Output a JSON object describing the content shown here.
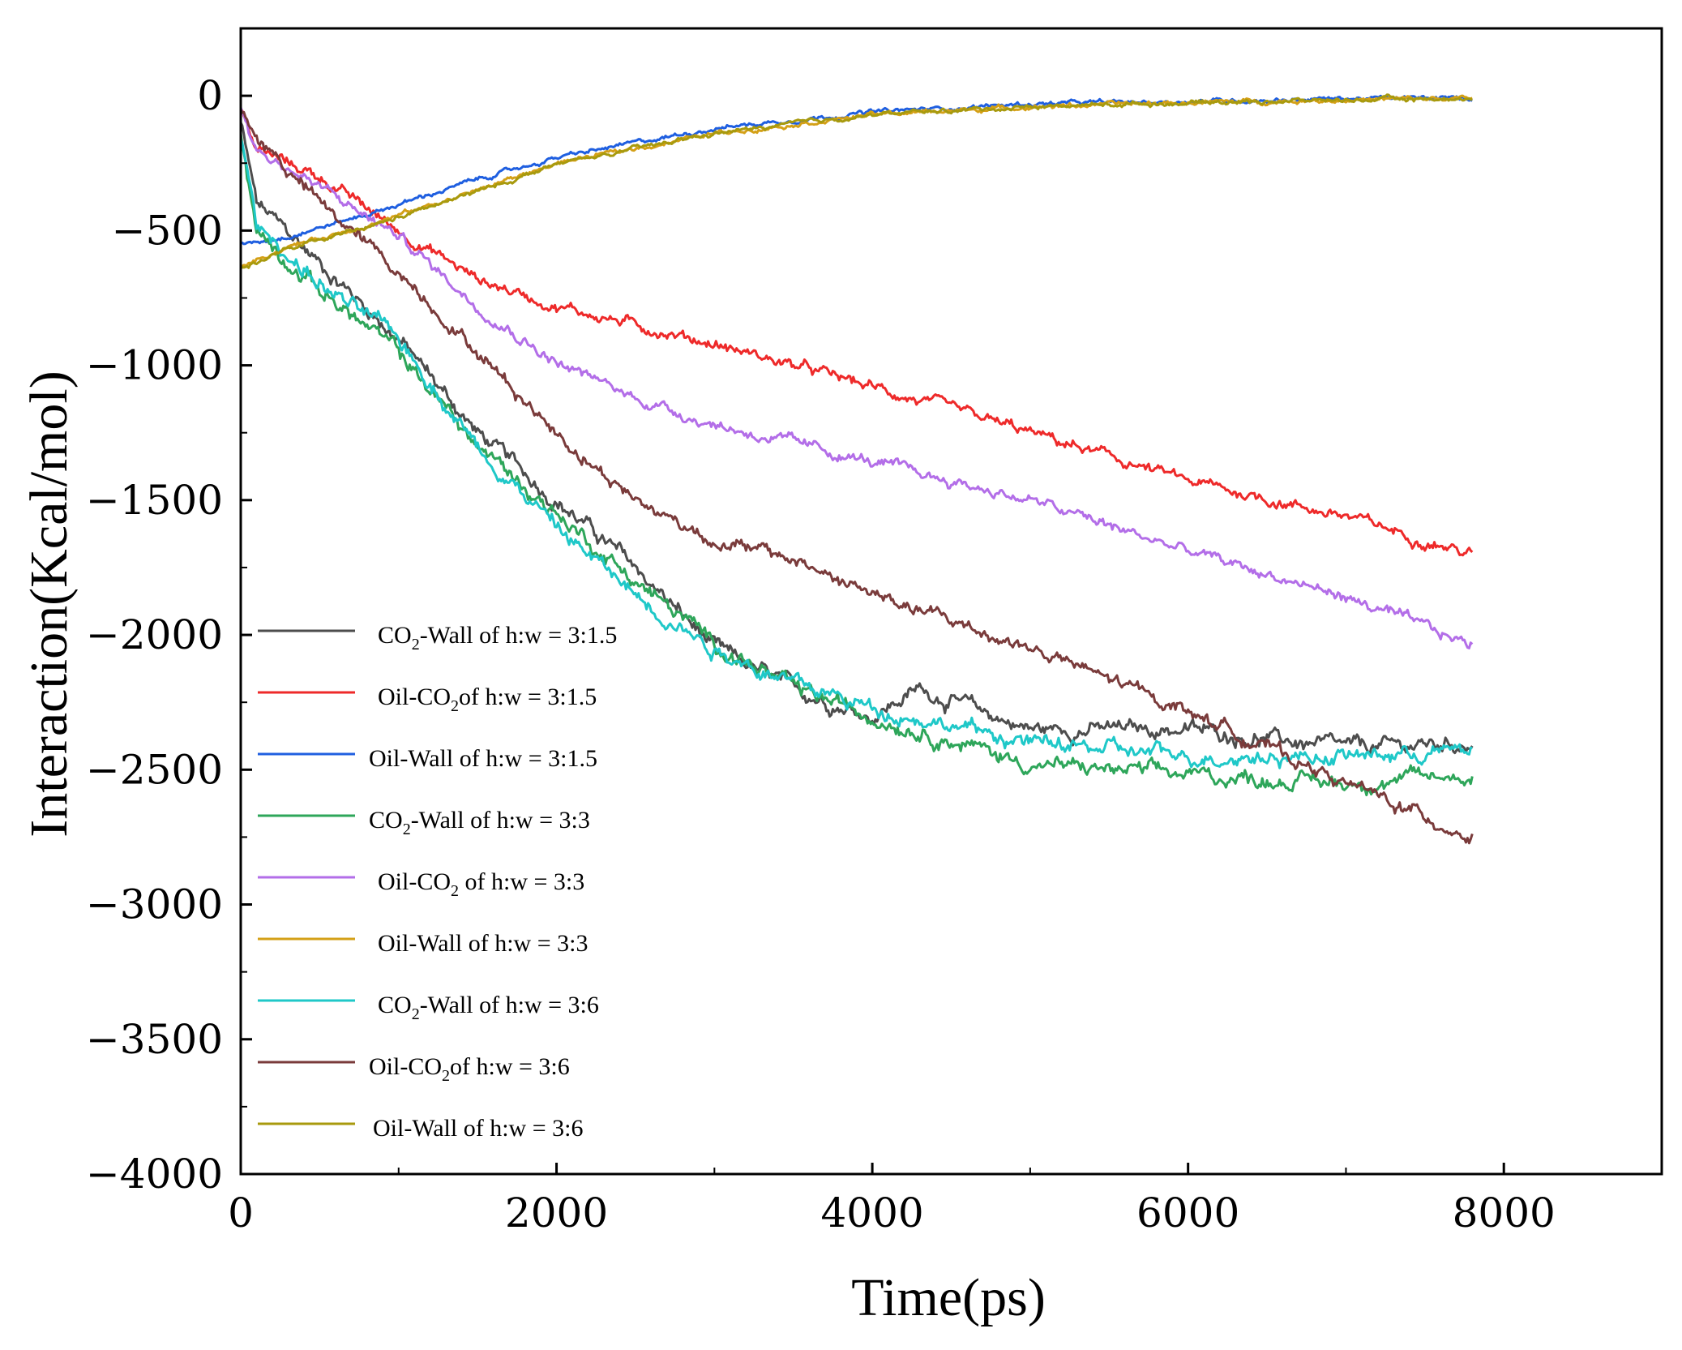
{
  "chart_data": {
    "type": "line",
    "title": "",
    "xlabel": "Time(ps)",
    "ylabel": "Interaction(Kcal/mol)",
    "xlim": [
      0,
      9000
    ],
    "ylim": [
      -4000,
      250
    ],
    "xticks": [
      0,
      2000,
      4000,
      6000,
      8000
    ],
    "xtick_labels": [
      "0",
      "2000",
      "4000",
      "6000",
      "8000"
    ],
    "yticks": [
      0,
      -500,
      -1000,
      -1500,
      -2000,
      -2500,
      -3000,
      -3500,
      -4000
    ],
    "ytick_labels": [
      "0",
      "−500",
      "−1000",
      "−1500",
      "−2000",
      "−2500",
      "−3000",
      "−3500",
      "−4000"
    ],
    "grid": false,
    "legend_position": "lower-left",
    "series": [
      {
        "name": "CO2-Wall of h:w = 3:1.5",
        "legend_parts": [
          "CO",
          "2",
          "-Wall of h:w = 3:1.5"
        ],
        "color": "#4d4d4d",
        "noise": 35,
        "x": [
          0,
          100,
          500,
          1000,
          1500,
          2000,
          2500,
          3000,
          3500,
          4000,
          4300,
          5000,
          6000,
          7000,
          7800
        ],
        "values": [
          -100,
          -400,
          -620,
          -900,
          -1250,
          -1500,
          -1750,
          -2050,
          -2200,
          -2300,
          -2200,
          -2350,
          -2350,
          -2420,
          -2400
        ]
      },
      {
        "name": "Oil-CO2of h:w = 3:1.5",
        "legend_parts": [
          "Oil-CO",
          "2",
          "of h:w = 3:1.5"
        ],
        "color": "#ee2a2a",
        "noise": 25,
        "x": [
          0,
          100,
          500,
          1000,
          1500,
          2000,
          2500,
          3000,
          4000,
          5000,
          6000,
          7000,
          7800
        ],
        "values": [
          -50,
          -200,
          -300,
          -500,
          -680,
          -780,
          -850,
          -920,
          -1080,
          -1250,
          -1430,
          -1560,
          -1700
        ]
      },
      {
        "name": "Oil-Wall of h:w = 3:1.5",
        "legend_parts": [
          "Oil-Wall of h:w = 3:1.5"
        ],
        "color": "#1f5fe0",
        "noise": 10,
        "x": [
          0,
          300,
          800,
          1500,
          2000,
          3000,
          4000,
          5000,
          6000,
          7000,
          7800
        ],
        "values": [
          -550,
          -520,
          -440,
          -310,
          -230,
          -120,
          -60,
          -30,
          -20,
          -10,
          -10
        ]
      },
      {
        "name": "CO2-Wall of h:w = 3:3",
        "legend_parts": [
          "CO",
          "2",
          "-Wall of h:w = 3:3"
        ],
        "color": "#2ea65a",
        "noise": 35,
        "x": [
          0,
          100,
          500,
          1000,
          1500,
          2000,
          2500,
          3000,
          3500,
          4000,
          5000,
          6000,
          7000,
          7800
        ],
        "values": [
          -150,
          -500,
          -720,
          -950,
          -1300,
          -1550,
          -1800,
          -2030,
          -2200,
          -2300,
          -2480,
          -2520,
          -2550,
          -2520
        ]
      },
      {
        "name": "Oil-CO2 of h:w = 3:3",
        "legend_parts": [
          "Oil-CO",
          "2",
          " of h:w = 3:3"
        ],
        "color": "#b36ee8",
        "noise": 25,
        "x": [
          0,
          100,
          500,
          1000,
          1500,
          2000,
          2500,
          3000,
          3500,
          4000,
          5000,
          6000,
          7000,
          7800
        ],
        "values": [
          -50,
          -200,
          -340,
          -520,
          -780,
          -990,
          -1120,
          -1220,
          -1290,
          -1360,
          -1500,
          -1690,
          -1860,
          -2040
        ]
      },
      {
        "name": "Oil-Wall of h:w = 3:3",
        "legend_parts": [
          "Oil-Wall of h:w = 3:3"
        ],
        "color": "#d4a017",
        "noise": 10,
        "x": [
          0,
          300,
          800,
          1500,
          2000,
          3000,
          4000,
          5000,
          6000,
          7000,
          7800
        ],
        "values": [
          -630,
          -560,
          -480,
          -350,
          -250,
          -140,
          -70,
          -40,
          -25,
          -15,
          -10
        ]
      },
      {
        "name": "CO2-Wall of h:w = 3:6",
        "legend_parts": [
          "CO",
          "2",
          "-Wall of h:w = 3:6"
        ],
        "color": "#1fc8c8",
        "noise": 35,
        "x": [
          0,
          100,
          500,
          1000,
          1500,
          2000,
          2500,
          3000,
          3500,
          4000,
          5000,
          6000,
          7000,
          7800
        ],
        "values": [
          -150,
          -480,
          -700,
          -900,
          -1300,
          -1600,
          -1850,
          -2050,
          -2180,
          -2270,
          -2400,
          -2450,
          -2450,
          -2430
        ]
      },
      {
        "name": "Oil-CO2of h:w = 3:6",
        "legend_parts": [
          "Oil-CO",
          "2",
          "of h:w = 3:6"
        ],
        "color": "#7a3b3b",
        "noise": 30,
        "x": [
          0,
          100,
          500,
          1000,
          1500,
          2000,
          2500,
          3000,
          3500,
          4000,
          5000,
          6000,
          7000,
          7800
        ],
        "values": [
          -50,
          -150,
          -400,
          -650,
          -950,
          -1250,
          -1500,
          -1650,
          -1720,
          -1850,
          -2050,
          -2280,
          -2550,
          -2750
        ]
      },
      {
        "name": "Oil-Wall of h:w = 3:6",
        "legend_parts": [
          "Oil-Wall of h:w = 3:6"
        ],
        "color": "#a89a0e",
        "noise": 10,
        "x": [
          0,
          300,
          800,
          1500,
          2000,
          3000,
          4000,
          5000,
          6000,
          7000,
          7800
        ],
        "values": [
          -640,
          -570,
          -490,
          -355,
          -255,
          -140,
          -70,
          -40,
          -25,
          -15,
          -10
        ]
      }
    ]
  }
}
